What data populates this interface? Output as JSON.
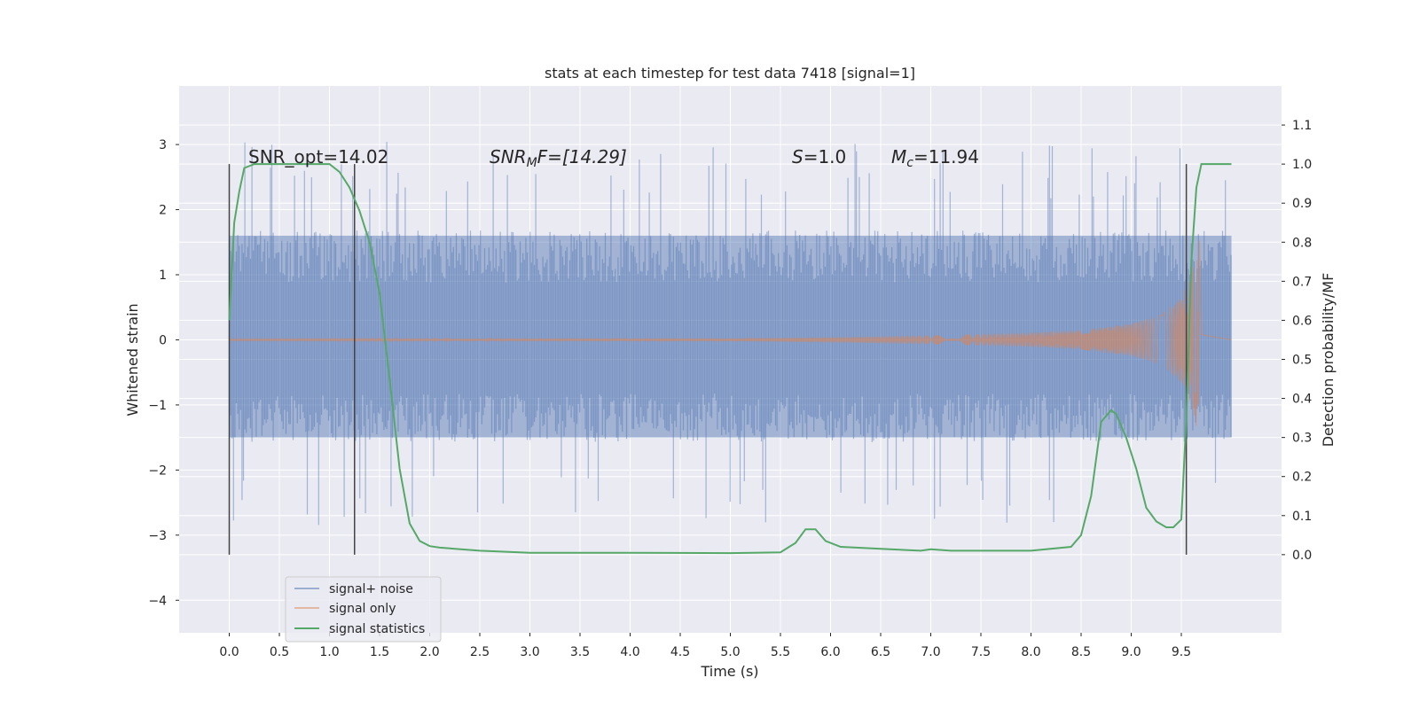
{
  "chart_data": {
    "type": "line",
    "title": "stats at each timestep for test data 7418 [signal=1]",
    "xlabel": "Time (s)",
    "ylabel_left": "Whitened strain",
    "ylabel_right": "Detection probability/MF",
    "xlim": [
      -0.5,
      10.5
    ],
    "ylim_left": [
      -4.5,
      3.9
    ],
    "ylim_right": [
      -0.2,
      1.2
    ],
    "x_ticks": [
      "0.0",
      "0.5",
      "1.0",
      "1.5",
      "2.0",
      "2.5",
      "3.0",
      "3.5",
      "4.0",
      "4.5",
      "5.0",
      "5.5",
      "6.0",
      "6.5",
      "7.0",
      "7.5",
      "8.0",
      "8.5",
      "9.0",
      "9.5"
    ],
    "y_left_ticks": [
      "3",
      "2",
      "1",
      "0",
      "−1",
      "−2",
      "−3",
      "−4"
    ],
    "y_right_ticks": [
      "1.1",
      "1.0",
      "0.9",
      "0.8",
      "0.7",
      "0.6",
      "0.5",
      "0.4",
      "0.3",
      "0.2",
      "0.1",
      "0.0"
    ],
    "grid": true,
    "legend_position": "lower-left",
    "annotations": {
      "snr_opt": "SNR_opt=14.02",
      "snr_mf_sym": "SNR",
      "snr_mf_sub": "M",
      "snr_mf_rest": "F=[14.29]",
      "s_sym": "S",
      "s_rest": "=1.0",
      "mc_sym": "M",
      "mc_sub": "c",
      "mc_rest": "=11.94"
    },
    "vertical_markers": [
      0.0,
      1.25,
      9.55
    ],
    "series": [
      {
        "name": "signal+ noise",
        "color": "#4c72b0",
        "axis": "left",
        "envelope_x": [
          0.0,
          10.0
        ],
        "envelope_typical": [
          -1.5,
          1.6
        ],
        "envelope_peak": [
          -2.6,
          2.9
        ]
      },
      {
        "name": "signal only",
        "color": "#dd8452",
        "axis": "left",
        "x": [
          0.0,
          5.0,
          6.0,
          7.0,
          8.0,
          8.5,
          9.0,
          9.3,
          9.5,
          9.6,
          9.68,
          9.7,
          10.0
        ],
        "amplitude": [
          0.01,
          0.02,
          0.04,
          0.07,
          0.11,
          0.15,
          0.25,
          0.38,
          0.65,
          1.0,
          1.55,
          0.08,
          0.0
        ]
      },
      {
        "name": "signal statistics",
        "color": "#55a868",
        "axis": "right",
        "x": [
          0.0,
          0.05,
          0.1,
          0.15,
          0.25,
          0.5,
          0.8,
          1.0,
          1.1,
          1.2,
          1.3,
          1.4,
          1.5,
          1.6,
          1.7,
          1.8,
          1.9,
          2.0,
          2.1,
          2.5,
          3.0,
          4.0,
          5.0,
          5.5,
          5.65,
          5.75,
          5.85,
          5.95,
          6.1,
          6.5,
          6.9,
          7.0,
          7.2,
          7.5,
          8.0,
          8.4,
          8.5,
          8.6,
          8.7,
          8.8,
          8.85,
          8.95,
          9.05,
          9.15,
          9.25,
          9.35,
          9.42,
          9.5,
          9.55,
          9.6,
          9.65,
          9.7,
          9.8,
          10.0
        ],
        "values": [
          0.6,
          0.85,
          0.93,
          0.99,
          1.0,
          1.0,
          1.0,
          1.0,
          0.98,
          0.94,
          0.88,
          0.8,
          0.67,
          0.45,
          0.22,
          0.08,
          0.035,
          0.022,
          0.018,
          0.01,
          0.005,
          0.005,
          0.004,
          0.006,
          0.03,
          0.065,
          0.065,
          0.035,
          0.02,
          0.015,
          0.01,
          0.014,
          0.01,
          0.01,
          0.01,
          0.02,
          0.05,
          0.15,
          0.34,
          0.37,
          0.36,
          0.3,
          0.22,
          0.12,
          0.085,
          0.07,
          0.07,
          0.09,
          0.35,
          0.75,
          0.94,
          1.0,
          1.0,
          1.0
        ]
      }
    ]
  }
}
